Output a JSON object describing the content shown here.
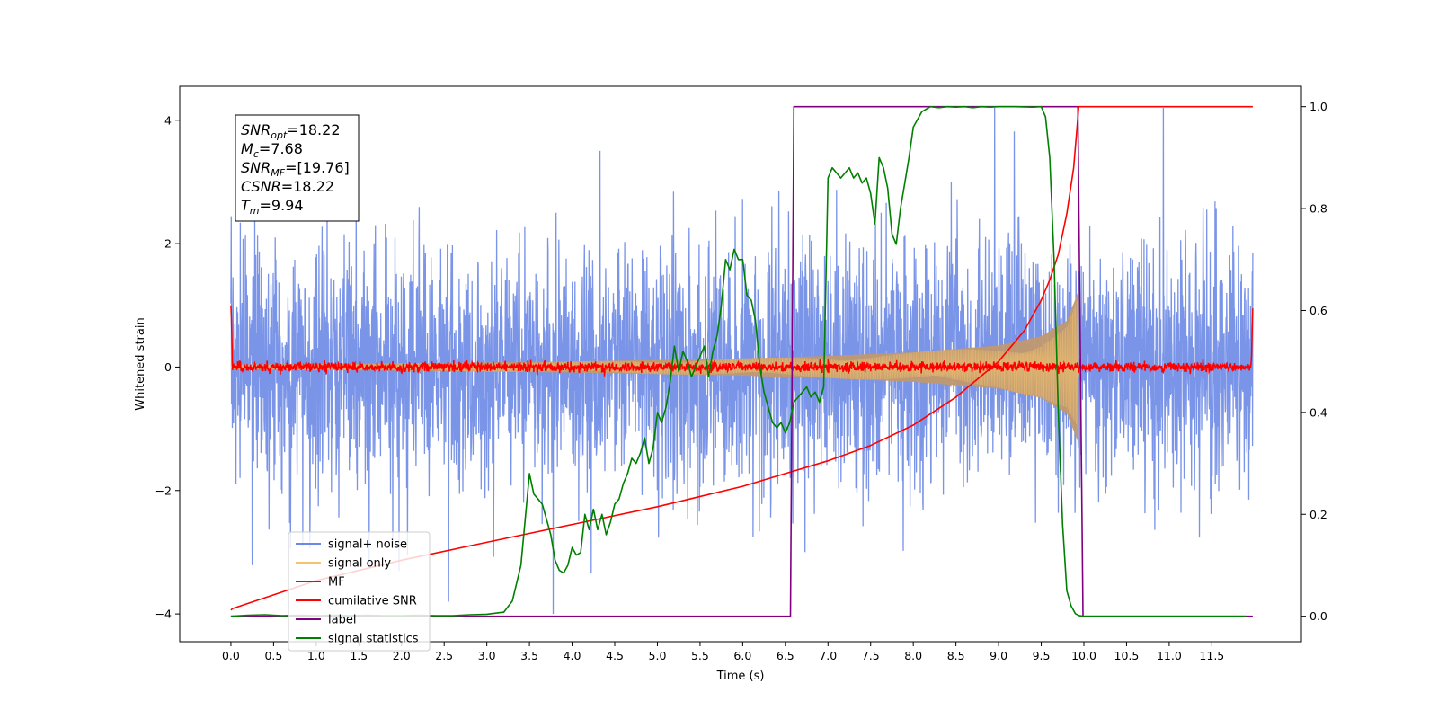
{
  "chart_data": {
    "type": "line",
    "title": "",
    "xlabel": "Time (s)",
    "ylabel": "Whitened strain",
    "xlim": [
      -0.6,
      12.55
    ],
    "ylim": [
      -4.45,
      4.55
    ],
    "y2lim": [
      -0.05,
      1.04
    ],
    "xticks": [
      0.0,
      0.5,
      1.0,
      1.5,
      2.0,
      2.5,
      3.0,
      3.5,
      4.0,
      4.5,
      5.0,
      5.5,
      6.0,
      6.5,
      7.0,
      7.5,
      8.0,
      8.5,
      9.0,
      9.5,
      10.0,
      10.5,
      11.0,
      11.5
    ],
    "xtick_labels": [
      "0.0",
      "0.5",
      "1.0",
      "1.5",
      "2.0",
      "2.5",
      "3.0",
      "3.5",
      "4.0",
      "4.5",
      "5.0",
      "5.5",
      "6.0",
      "6.5",
      "7.0",
      "7.5",
      "8.0",
      "8.5",
      "9.0",
      "9.5",
      "10.0",
      "10.5",
      "11.0",
      "11.5"
    ],
    "yticks": [
      -4,
      -2,
      0,
      2,
      4
    ],
    "ytick_labels": [
      "−4",
      "−2",
      "0",
      "2",
      "4"
    ],
    "y2ticks": [
      0.0,
      0.2,
      0.4,
      0.6,
      0.8,
      1.0
    ],
    "y2tick_labels": [
      "0.0",
      "0.2",
      "0.4",
      "0.6",
      "0.8",
      "1.0"
    ],
    "grid": false,
    "legend_position": "bottom-left",
    "colors": {
      "noisy": "#6b88e6",
      "signal": "#f5c36b",
      "signal_overlap": "#c0986f",
      "mf": "#ff0000",
      "csnr": "#ff0000",
      "label": "#800080",
      "stat": "#008000"
    },
    "annotation": {
      "lines": [
        {
          "main": "SNR",
          "sub": "opt",
          "value": "=18.22"
        },
        {
          "main": "M",
          "sub": "c",
          "value": "=7.68"
        },
        {
          "main": "SNR",
          "sub": "MF",
          "value": "=[19.76]"
        },
        {
          "main": "CSNR",
          "sub": "",
          "value": "=18.22"
        },
        {
          "main": "T",
          "sub": "m",
          "value": "=9.94"
        }
      ]
    },
    "series": [
      {
        "name": "signal+ noise",
        "color": "#6b88e6",
        "axis": "left",
        "kind": "noise",
        "x_range": [
          0,
          11.98
        ],
        "std": 0.95
      },
      {
        "name": "signal only",
        "color": "#f5c36b",
        "axis": "left",
        "kind": "chirp",
        "x_range": [
          0,
          9.94
        ],
        "envelope": {
          "x": [
            0,
            2,
            4,
            6,
            7,
            8,
            9,
            9.5,
            9.8,
            9.9,
            9.94
          ],
          "amp": [
            0.04,
            0.06,
            0.09,
            0.14,
            0.18,
            0.24,
            0.35,
            0.5,
            0.75,
            1.1,
            1.25
          ]
        }
      },
      {
        "name": "MF",
        "color": "#ff0000",
        "axis": "left",
        "kind": "mf",
        "x_range": [
          0,
          11.98
        ],
        "std": 0.04,
        "edges": [
          1.0,
          0.95
        ]
      },
      {
        "name": "cumilative SNR",
        "color": "#ff0000",
        "axis": "right",
        "x": [
          0,
          0.02,
          1,
          2,
          3,
          4,
          5,
          6,
          6.5,
          7,
          7.5,
          8,
          8.5,
          9,
          9.3,
          9.5,
          9.6,
          9.7,
          9.8,
          9.88,
          9.94,
          9.95,
          11.98
        ],
        "values": [
          0.012,
          0.015,
          0.07,
          0.11,
          0.145,
          0.18,
          0.215,
          0.255,
          0.28,
          0.305,
          0.335,
          0.375,
          0.43,
          0.5,
          0.56,
          0.62,
          0.66,
          0.71,
          0.79,
          0.88,
          1.0,
          1.0,
          1.0
        ]
      },
      {
        "name": "label",
        "color": "#800080",
        "axis": "right",
        "x": [
          0,
          6.56,
          6.6,
          9.93,
          9.99,
          11.98
        ],
        "values": [
          0,
          0,
          1,
          1,
          0,
          0
        ]
      },
      {
        "name": "signal statistics",
        "color": "#008000",
        "axis": "right",
        "x": [
          0.0,
          0.2,
          0.4,
          0.6,
          0.8,
          1.0,
          1.2,
          1.4,
          1.6,
          1.8,
          2.0,
          2.2,
          2.4,
          2.6,
          2.8,
          3.0,
          3.2,
          3.3,
          3.4,
          3.5,
          3.55,
          3.6,
          3.65,
          3.7,
          3.75,
          3.8,
          3.85,
          3.9,
          3.95,
          4.0,
          4.05,
          4.1,
          4.15,
          4.2,
          4.25,
          4.3,
          4.35,
          4.4,
          4.45,
          4.5,
          4.55,
          4.6,
          4.65,
          4.7,
          4.75,
          4.8,
          4.85,
          4.9,
          4.95,
          5.0,
          5.05,
          5.1,
          5.15,
          5.2,
          5.25,
          5.3,
          5.35,
          5.4,
          5.45,
          5.5,
          5.55,
          5.6,
          5.65,
          5.7,
          5.75,
          5.8,
          5.85,
          5.9,
          5.95,
          6.0,
          6.05,
          6.1,
          6.15,
          6.2,
          6.25,
          6.3,
          6.35,
          6.4,
          6.45,
          6.5,
          6.55,
          6.6,
          6.65,
          6.7,
          6.75,
          6.8,
          6.85,
          6.9,
          6.95,
          7.0,
          7.05,
          7.1,
          7.15,
          7.2,
          7.25,
          7.3,
          7.35,
          7.4,
          7.45,
          7.5,
          7.55,
          7.6,
          7.65,
          7.7,
          7.75,
          7.8,
          7.85,
          7.9,
          7.95,
          8.0,
          8.1,
          8.2,
          8.3,
          8.4,
          8.5,
          8.6,
          8.7,
          8.8,
          8.9,
          9.0,
          9.2,
          9.4,
          9.5,
          9.55,
          9.6,
          9.65,
          9.7,
          9.75,
          9.8,
          9.85,
          9.9,
          9.95,
          10.0,
          10.5,
          11.0,
          11.5,
          11.9
        ],
        "values": [
          0.0,
          0.002,
          0.003,
          0.001,
          0.002,
          0.001,
          0.002,
          0.001,
          0.002,
          0.001,
          0.001,
          0.002,
          0.001,
          0.001,
          0.003,
          0.004,
          0.008,
          0.03,
          0.1,
          0.28,
          0.24,
          0.23,
          0.22,
          0.19,
          0.16,
          0.11,
          0.09,
          0.085,
          0.1,
          0.135,
          0.12,
          0.125,
          0.2,
          0.17,
          0.21,
          0.17,
          0.2,
          0.16,
          0.185,
          0.22,
          0.23,
          0.26,
          0.28,
          0.31,
          0.3,
          0.32,
          0.35,
          0.3,
          0.33,
          0.4,
          0.38,
          0.41,
          0.46,
          0.53,
          0.48,
          0.52,
          0.5,
          0.47,
          0.49,
          0.51,
          0.53,
          0.47,
          0.52,
          0.55,
          0.61,
          0.7,
          0.68,
          0.72,
          0.7,
          0.7,
          0.63,
          0.62,
          0.58,
          0.49,
          0.44,
          0.41,
          0.38,
          0.37,
          0.38,
          0.36,
          0.38,
          0.42,
          0.43,
          0.44,
          0.45,
          0.43,
          0.44,
          0.42,
          0.45,
          0.86,
          0.88,
          0.87,
          0.86,
          0.87,
          0.88,
          0.86,
          0.87,
          0.85,
          0.86,
          0.83,
          0.77,
          0.9,
          0.88,
          0.84,
          0.75,
          0.73,
          0.8,
          0.85,
          0.9,
          0.96,
          0.99,
          1.0,
          0.998,
          1.0,
          0.999,
          1.0,
          0.998,
          1.0,
          0.999,
          1.0,
          1.0,
          0.999,
          1.0,
          0.98,
          0.9,
          0.7,
          0.4,
          0.18,
          0.05,
          0.02,
          0.005,
          0.001,
          0.0,
          0.0,
          0.0,
          0.0,
          0.0
        ]
      }
    ]
  }
}
